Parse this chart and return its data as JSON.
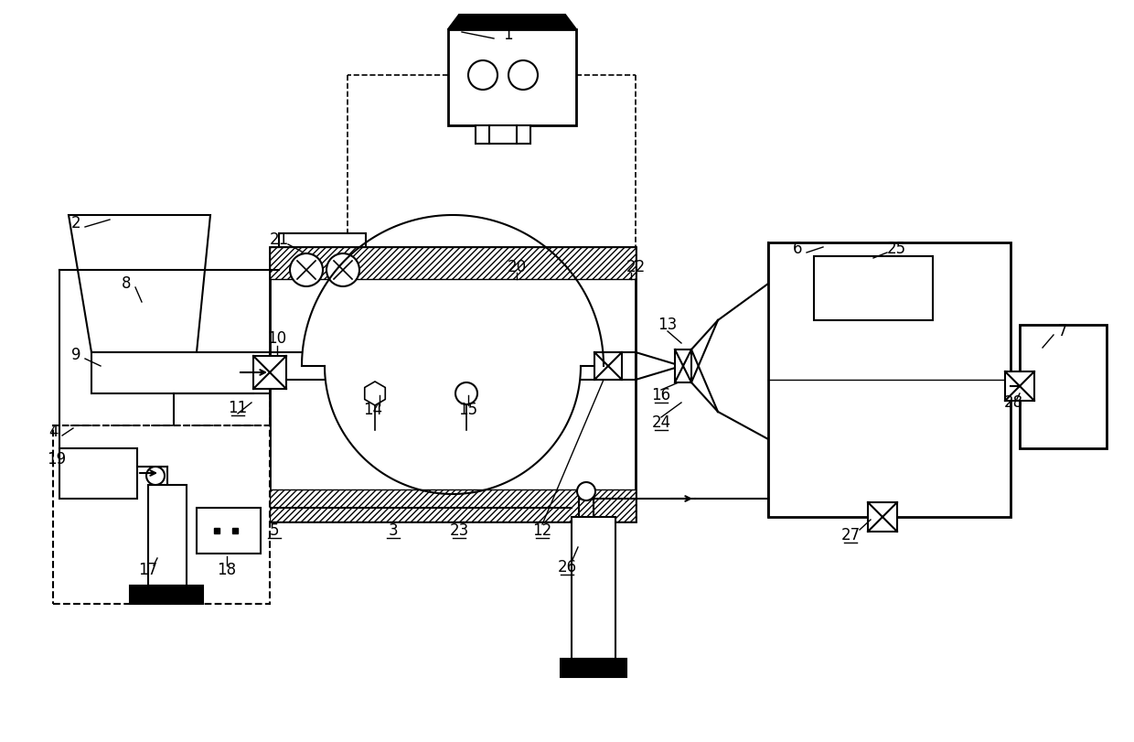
{
  "bg_color": "#ffffff",
  "line_color": "#000000",
  "fig_width": 12.4,
  "fig_height": 8.11
}
